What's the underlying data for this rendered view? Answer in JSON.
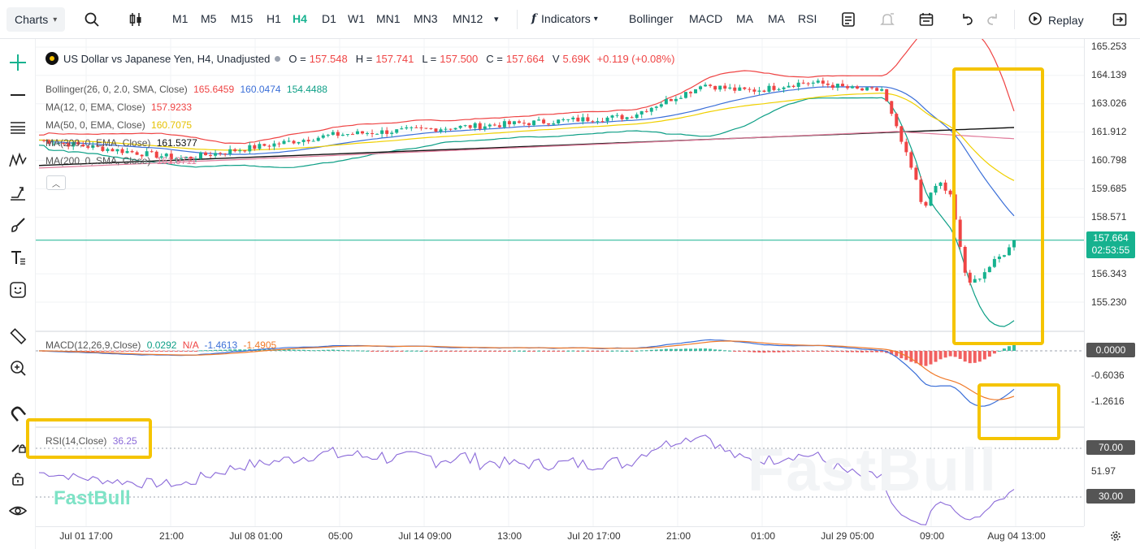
{
  "toolbar": {
    "charts_label": "Charts",
    "timeframes": [
      "M1",
      "M5",
      "M15",
      "H1",
      "H4",
      "D1",
      "W1",
      "MN1",
      "MN3",
      "MN12"
    ],
    "active_timeframe": "H4",
    "indicators_label": "Indicators",
    "quick_indicators": [
      "Bollinger",
      "MACD",
      "MA",
      "MA",
      "RSI"
    ],
    "replay_label": "Replay"
  },
  "symbol": {
    "name": "US Dollar vs Japanese Yen, H4, Unadjusted",
    "o_label": "O =",
    "o": "157.548",
    "h_label": "H =",
    "h": "157.741",
    "l_label": "L =",
    "l": "157.500",
    "c_label": "C =",
    "c": "157.664",
    "v_label": "V",
    "v": "5.69K",
    "change": "+0.119 (+0.08%)"
  },
  "legends": {
    "bollinger": {
      "name": "Bollinger(26, 0, 2.0, SMA, Close)",
      "v1": "165.6459",
      "v2": "160.0474",
      "v3": "154.4488"
    },
    "ma12": {
      "name": "MA(12, 0, EMA, Close)",
      "v": "157.9233"
    },
    "ma50": {
      "name": "MA(50, 0, EMA, Close)",
      "v": "160.7075"
    },
    "ma200e": {
      "name": "MA(200, 0, EMA, Close)",
      "v": "161.5377"
    },
    "ma200s": {
      "name": "MA(200, 0, SMA, Close)",
      "v": "161.9711"
    },
    "macd": {
      "name": "MACD(12,26,9,Close)",
      "v1": "0.0292",
      "v2": "N/A",
      "v3": "-1.4613",
      "v4": "-1.4905"
    },
    "rsi": {
      "name": "RSI(14,Close)",
      "v": "36.25"
    }
  },
  "price_axis": {
    "main": [
      "165.253",
      "164.139",
      "163.026",
      "161.912",
      "160.798",
      "159.685",
      "158.571",
      "156.343",
      "155.230"
    ],
    "current_price": "157.664",
    "countdown": "02:53:55",
    "macd": [
      "0.0000",
      "-0.6036",
      "-1.2616"
    ],
    "rsi": [
      "70.00",
      "51.97",
      "30.00"
    ]
  },
  "time_axis": [
    "Jul 01 17:00",
    "21:00",
    "Jul 08 01:00",
    "05:00",
    "Jul 14 09:00",
    "13:00",
    "Jul 20 17:00",
    "21:00",
    "01:00",
    "Jul 29 05:00",
    "09:00",
    "Aug 04 13:00"
  ],
  "watermark": "FastBull",
  "colors": {
    "accent": "#16b28f",
    "up": "#16b28f",
    "down": "#ef4444",
    "highlight": "#f5c400",
    "ma12": "#ef4444",
    "ma50": "#f0d000",
    "bollinger_upper": "#ef4444",
    "bollinger_mid": "#3b6fd8",
    "bollinger_lower": "#0d9f86",
    "ma200e": "#111111",
    "ma200s": "#e07a9a",
    "rsi": "#8b6ad9"
  },
  "icons": {
    "left_toolbar": [
      "crosshair-icon",
      "horizontal-line-icon",
      "fib-icon",
      "pattern-icon",
      "trend-icon",
      "brush-icon",
      "text-icon",
      "emoji-icon",
      "ruler-icon",
      "zoom-icon",
      "magnet-icon",
      "lock-draw-icon",
      "lock-icon",
      "eye-icon"
    ],
    "top": [
      "search-icon",
      "candle-type-icon",
      "formula-icon",
      "template-icon",
      "alert-icon",
      "calendar-icon",
      "undo-icon",
      "redo-icon",
      "replay-icon",
      "fullscreen-icon"
    ]
  }
}
